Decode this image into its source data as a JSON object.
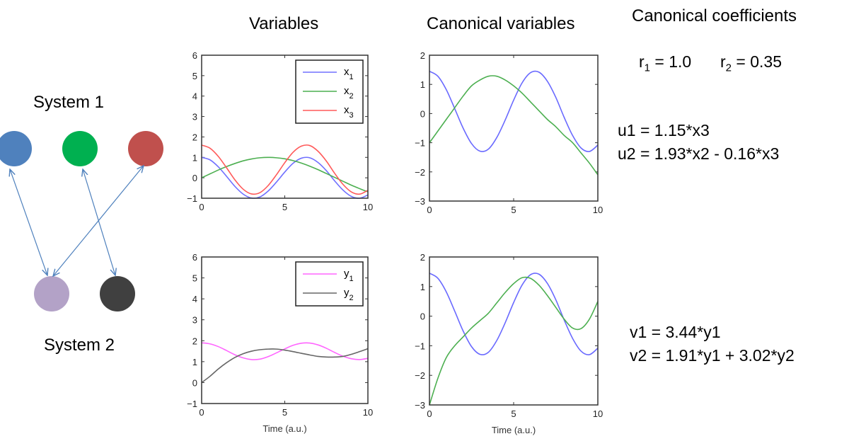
{
  "diagram": {
    "system1_label": "System 1",
    "system2_label": "System 2",
    "system1_nodes": [
      {
        "color": "#4f81bd"
      },
      {
        "color": "#00b050"
      },
      {
        "color": "#c0504d"
      }
    ],
    "system2_nodes": [
      {
        "color": "#b3a2c7"
      },
      {
        "color": "#404040"
      }
    ],
    "arrow_color": "#4f81bd"
  },
  "titles": {
    "variables": "Variables",
    "canonical": "Canonical variables",
    "coefficients": "Canonical coefficients"
  },
  "coefficients": {
    "r1": {
      "base": "r",
      "sub": "1",
      "rest": " = 1.0"
    },
    "r2": {
      "base": "r",
      "sub": "2",
      "rest": " = 0.35"
    },
    "u1": "u1 = 1.15*x3",
    "u2": "u2 = 1.93*x2 - 0.16*x3",
    "v1": "v1 = 3.44*y1",
    "v2": "v2 = 1.91*y1 + 3.02*y2"
  },
  "chart_data": [
    {
      "type": "line",
      "xlabel": "",
      "xlim": [
        0,
        10
      ],
      "ylim": [
        -1,
        6
      ],
      "xticks": [
        0,
        5,
        10
      ],
      "yticks": [
        -1,
        0,
        1,
        2,
        3,
        4,
        5,
        6
      ],
      "legend": "top-right",
      "x": [
        0,
        0.5,
        1,
        1.5,
        2,
        2.5,
        3,
        3.5,
        4,
        4.5,
        5,
        5.5,
        6,
        6.5,
        7,
        7.5,
        8,
        8.5,
        9,
        9.5,
        10
      ],
      "series": [
        {
          "name": "x",
          "sub": "1",
          "color": "#7070ff",
          "values": [
            1,
            0.88,
            0.54,
            0.07,
            -0.42,
            -0.8,
            -0.99,
            -0.94,
            -0.65,
            -0.21,
            0.28,
            0.71,
            0.96,
            0.98,
            0.75,
            0.35,
            -0.15,
            -0.6,
            -0.91,
            -1.0,
            -0.84
          ]
        },
        {
          "name": "x",
          "sub": "2",
          "color": "#4caf50",
          "values": [
            0,
            0.19,
            0.38,
            0.55,
            0.7,
            0.83,
            0.92,
            0.98,
            1.0,
            0.98,
            0.93,
            0.84,
            0.72,
            0.57,
            0.4,
            0.21,
            0.02,
            -0.17,
            -0.36,
            -0.53,
            -0.69
          ]
        },
        {
          "name": "x",
          "sub": "3",
          "color": "#ff5a5a",
          "values": [
            1.6,
            1.45,
            1.05,
            0.49,
            -0.1,
            -0.56,
            -0.79,
            -0.73,
            -0.38,
            0.15,
            0.74,
            1.25,
            1.55,
            1.58,
            1.3,
            0.82,
            0.22,
            -0.32,
            -0.69,
            -0.8,
            -0.61
          ]
        }
      ]
    },
    {
      "type": "line",
      "xlabel": "",
      "xlim": [
        0,
        10
      ],
      "ylim": [
        -3,
        2
      ],
      "xticks": [
        0,
        5,
        10
      ],
      "yticks": [
        -3,
        -2,
        -1,
        0,
        1,
        2
      ],
      "x": [
        0,
        0.5,
        1,
        1.5,
        2,
        2.5,
        3,
        3.5,
        4,
        4.5,
        5,
        5.5,
        6,
        6.5,
        7,
        7.5,
        8,
        8.5,
        9,
        9.5,
        10
      ],
      "series": [
        {
          "color": "#6a6aff",
          "values": [
            1.45,
            1.28,
            0.82,
            0.17,
            -0.5,
            -1.03,
            -1.29,
            -1.22,
            -0.82,
            -0.22,
            0.46,
            1.05,
            1.4,
            1.42,
            1.11,
            0.56,
            -0.13,
            -0.75,
            -1.18,
            -1.3,
            -1.08
          ]
        },
        {
          "color": "#4caf50",
          "values": [
            -1,
            -0.6,
            -0.2,
            0.2,
            0.6,
            0.95,
            1.15,
            1.28,
            1.28,
            1.15,
            0.95,
            0.7,
            0.4,
            0.1,
            -0.2,
            -0.45,
            -0.75,
            -1.0,
            -1.35,
            -1.7,
            -2.1
          ]
        }
      ]
    },
    {
      "type": "line",
      "xlabel": "Time (a.u.)",
      "xlim": [
        0,
        10
      ],
      "ylim": [
        -1,
        6
      ],
      "xticks": [
        0,
        5,
        10
      ],
      "yticks": [
        -1,
        0,
        1,
        2,
        3,
        4,
        5,
        6
      ],
      "legend": "top-right",
      "x": [
        0,
        0.5,
        1,
        1.5,
        2,
        2.5,
        3,
        3.5,
        4,
        4.5,
        5,
        5.5,
        6,
        6.5,
        7,
        7.5,
        8,
        8.5,
        9,
        9.5,
        10
      ],
      "series": [
        {
          "name": "y",
          "sub": "1",
          "color": "#ff66ff",
          "values": [
            1.9,
            1.85,
            1.72,
            1.53,
            1.33,
            1.18,
            1.1,
            1.12,
            1.24,
            1.42,
            1.61,
            1.78,
            1.88,
            1.89,
            1.8,
            1.64,
            1.44,
            1.26,
            1.14,
            1.1,
            1.16
          ]
        },
        {
          "name": "y",
          "sub": "2",
          "color": "#666666",
          "values": [
            0,
            0.3,
            0.65,
            0.95,
            1.2,
            1.38,
            1.5,
            1.57,
            1.6,
            1.6,
            1.55,
            1.48,
            1.4,
            1.32,
            1.25,
            1.22,
            1.22,
            1.25,
            1.35,
            1.48,
            1.62
          ]
        }
      ]
    },
    {
      "type": "line",
      "xlabel": "Time (a.u.)",
      "xlim": [
        0,
        10
      ],
      "ylim": [
        -3,
        2
      ],
      "xticks": [
        0,
        5,
        10
      ],
      "yticks": [
        -3,
        -2,
        -1,
        0,
        1,
        2
      ],
      "x": [
        0,
        0.5,
        1,
        1.5,
        2,
        2.5,
        3,
        3.5,
        4,
        4.5,
        5,
        5.5,
        6,
        6.5,
        7,
        7.5,
        8,
        8.5,
        9,
        9.5,
        10
      ],
      "series": [
        {
          "color": "#6a6aff",
          "values": [
            1.45,
            1.28,
            0.82,
            0.17,
            -0.5,
            -1.03,
            -1.29,
            -1.22,
            -0.82,
            -0.22,
            0.46,
            1.05,
            1.4,
            1.42,
            1.11,
            0.56,
            -0.13,
            -0.75,
            -1.18,
            -1.3,
            -1.08
          ]
        },
        {
          "color": "#4caf50",
          "values": [
            -3,
            -2.1,
            -1.4,
            -1.0,
            -0.7,
            -0.4,
            -0.15,
            0.1,
            0.45,
            0.8,
            1.1,
            1.3,
            1.28,
            1.05,
            0.7,
            0.3,
            -0.1,
            -0.4,
            -0.42,
            -0.1,
            0.5
          ]
        }
      ]
    }
  ]
}
